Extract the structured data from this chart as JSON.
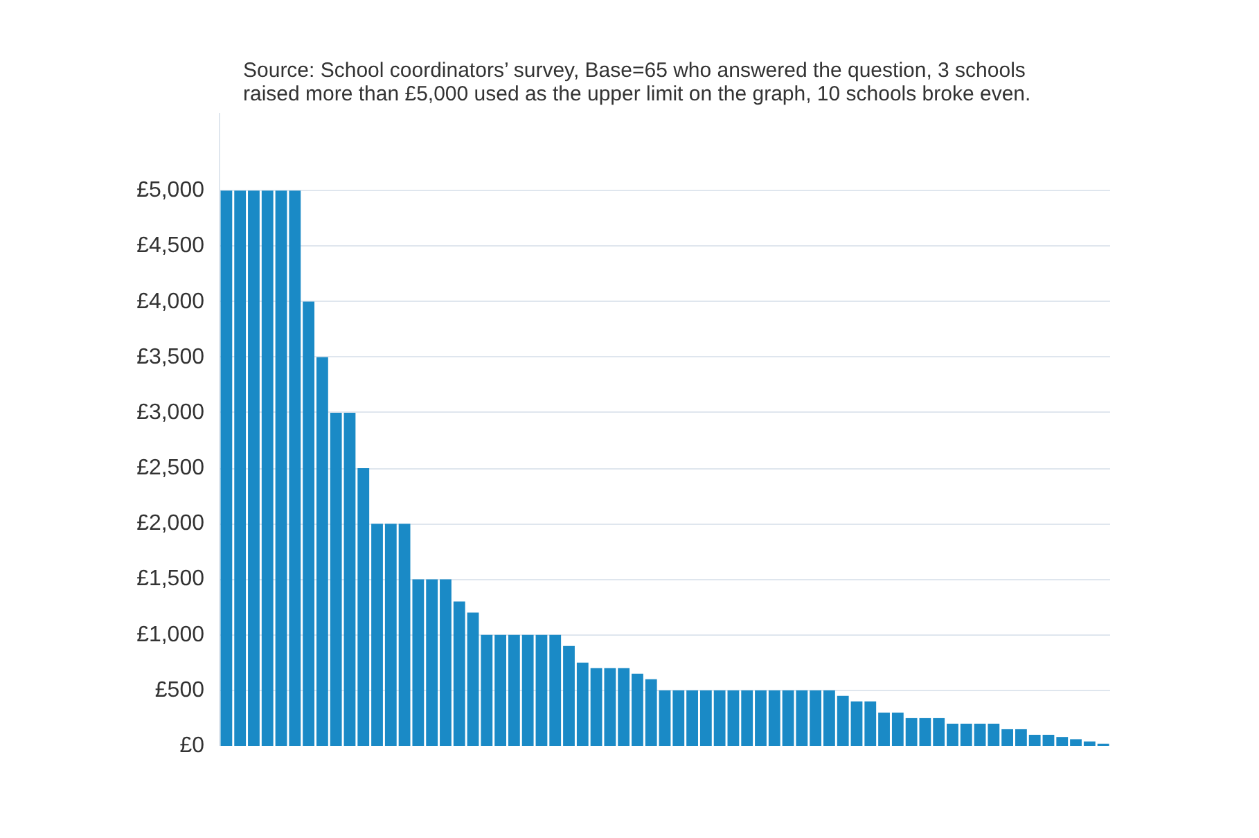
{
  "chart_data": {
    "type": "bar",
    "annotations": [
      "Source: School coordinators’ survey, Base=65 who answered the question, 3 schools\nraised more than £5,000 used as the upper limit on the graph, 10 schools broke even."
    ],
    "categories": [
      null,
      null,
      null,
      null,
      null,
      null,
      null,
      null,
      null,
      null,
      null,
      null,
      null,
      null,
      null,
      null,
      null,
      null,
      null,
      null,
      null,
      null,
      null,
      null,
      null,
      null,
      null,
      null,
      null,
      null,
      null,
      null,
      null,
      null,
      null,
      null,
      null,
      null,
      null,
      null,
      null,
      null,
      null,
      null,
      null,
      null,
      null,
      null,
      null,
      null,
      null,
      null,
      null,
      null,
      null,
      null,
      null,
      null,
      null,
      null,
      null,
      null,
      null,
      null,
      null
    ],
    "values": [
      5000,
      5000,
      5000,
      5000,
      5000,
      5000,
      4000,
      3500,
      3000,
      3000,
      2500,
      2000,
      2000,
      2000,
      1500,
      1500,
      1500,
      1300,
      1200,
      1000,
      1000,
      1000,
      1000,
      1000,
      1000,
      900,
      750,
      700,
      700,
      700,
      650,
      600,
      500,
      500,
      500,
      500,
      500,
      500,
      500,
      500,
      500,
      500,
      500,
      500,
      500,
      450,
      400,
      400,
      300,
      300,
      250,
      250,
      250,
      200,
      200,
      200,
      200,
      150,
      150,
      100,
      100,
      80,
      60,
      40,
      20
    ],
    "color": "#1a8ac6",
    "ylim": [
      0,
      5700
    ],
    "yticks": [
      {
        "value": 0,
        "label": "£0"
      },
      {
        "value": 500,
        "label": "£500"
      },
      {
        "value": 1000,
        "label": "£1,000"
      },
      {
        "value": 1500,
        "label": "£1,500"
      },
      {
        "value": 2000,
        "label": "£2,000"
      },
      {
        "value": 2500,
        "label": "£2,500"
      },
      {
        "value": 3000,
        "label": "£3,000"
      },
      {
        "value": 3500,
        "label": "£3,500"
      },
      {
        "value": 4000,
        "label": "£4,000"
      },
      {
        "value": 4500,
        "label": "£4,500"
      },
      {
        "value": 5000,
        "label": "£5,000"
      }
    ],
    "grid": "y",
    "tick_labels": "y"
  }
}
